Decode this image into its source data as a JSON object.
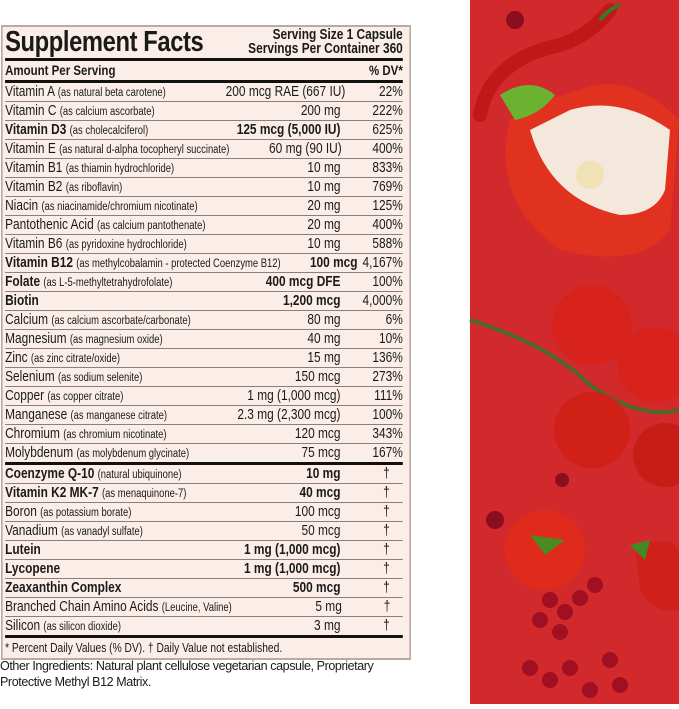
{
  "label": {
    "title": "Supplement Facts",
    "serving_size": "Serving Size 1 Capsule",
    "servings_per_container": "Servings Per Container 360",
    "amount_header": "Amount Per Serving",
    "dv_header": "% DV*",
    "rows": [
      {
        "name": "Vitamin A",
        "source": "(as natural beta carotene)",
        "amount": "200 mcg RAE (667 IU)",
        "dv": "22%"
      },
      {
        "name": "Vitamin C",
        "source": "(as calcium ascorbate)",
        "amount": "200 mg",
        "dv": "222%"
      },
      {
        "name": "Vitamin D3",
        "source": "(as cholecalciferol)",
        "amount": "125 mcg (5,000 IU)",
        "dv": "625%",
        "bold": true
      },
      {
        "name": "Vitamin E",
        "source": "(as natural d-alpha tocopheryl succinate)",
        "amount": "60 mg (90 IU)",
        "dv": "400%"
      },
      {
        "name": "Vitamin B1",
        "source": "(as thiamin hydrochloride)",
        "amount": "10 mg",
        "dv": "833%"
      },
      {
        "name": "Vitamin B2",
        "source": "(as riboflavin)",
        "amount": "10 mg",
        "dv": "769%"
      },
      {
        "name": "Niacin",
        "source": "(as niacinamide/chromium nicotinate)",
        "amount": "20 mg",
        "dv": "125%"
      },
      {
        "name": "Pantothenic Acid",
        "source": "(as calcium pantothenate)",
        "amount": "20 mg",
        "dv": "400%"
      },
      {
        "name": "Vitamin B6",
        "source": "(as pyridoxine hydrochloride)",
        "amount": "10 mg",
        "dv": "588%"
      },
      {
        "name": "Vitamin B12",
        "source": "(as methylcobalamin - protected Coenzyme B12)",
        "amount": "100 mcg",
        "dv": "4,167%",
        "bold": true
      },
      {
        "name": "Folate",
        "source": "(as L-5-methyltetrahydrofolate)",
        "amount": "400 mcg DFE",
        "dv": "100%",
        "bold": true
      },
      {
        "name": "Biotin",
        "source": "",
        "amount": "1,200 mcg",
        "dv": "4,000%",
        "bold": true
      },
      {
        "name": "Calcium",
        "source": "(as calcium ascorbate/carbonate)",
        "amount": "80 mg",
        "dv": "6%"
      },
      {
        "name": "Magnesium",
        "source": "(as magnesium oxide)",
        "amount": "40 mg",
        "dv": "10%"
      },
      {
        "name": "Zinc",
        "source": "(as zinc citrate/oxide)",
        "amount": "15 mg",
        "dv": "136%"
      },
      {
        "name": "Selenium",
        "source": "(as sodium selenite)",
        "amount": "150 mcg",
        "dv": "273%"
      },
      {
        "name": "Copper",
        "source": "(as copper citrate)",
        "amount": "1 mg (1,000 mcg)",
        "dv": "111%"
      },
      {
        "name": "Manganese",
        "source": "(as manganese citrate)",
        "amount": "2.3 mg (2,300 mcg)",
        "dv": "100%"
      },
      {
        "name": "Chromium",
        "source": "(as chromium nicotinate)",
        "amount": "120 mcg",
        "dv": "343%"
      },
      {
        "name": "Molybdenum",
        "source": "(as molybdenum glycinate)",
        "amount": "75 mcg",
        "dv": "167%",
        "thick": true
      },
      {
        "name": "Coenzyme Q-10",
        "source": "(natural ubiquinone)",
        "amount": "10 mg",
        "dv": "†",
        "bold": true
      },
      {
        "name": "Vitamin K2 MK-7",
        "source": "(as menaquinone-7)",
        "amount": "40 mcg",
        "dv": "†",
        "bold": true
      },
      {
        "name": "Boron",
        "source": "(as potassium borate)",
        "amount": "100 mcg",
        "dv": "†"
      },
      {
        "name": "Vanadium",
        "source": "(as vanadyl sulfate)",
        "amount": "50 mcg",
        "dv": "†"
      },
      {
        "name": "Lutein",
        "source": "",
        "amount": "1 mg (1,000 mcg)",
        "dv": "†",
        "bold": true
      },
      {
        "name": "Lycopene",
        "source": "",
        "amount": "1 mg (1,000 mcg)",
        "dv": "†",
        "bold": true
      },
      {
        "name": "Zeaxanthin Complex",
        "source": "",
        "amount": "500 mcg",
        "dv": "†",
        "bold": true
      },
      {
        "name": "Branched Chain Amino Acids",
        "source": "(Leucine, Valine)",
        "amount": "5 mg",
        "dv": "†"
      },
      {
        "name": "Silicon",
        "source": "(as silicon dioxide)",
        "amount": "3 mg",
        "dv": "†",
        "thick": true
      }
    ],
    "footnote": "* Percent Daily Values (% DV). † Daily Value not established."
  },
  "other_ingredients": "Other Ingredients: Natural plant cellulose vegetarian capsule, Proprietary Protective Methyl B12 Matrix.",
  "photo": {
    "subject_icons": [
      "chili-pepper",
      "red-bell-pepper",
      "cherry-tomatoes",
      "pomegranate-seeds",
      "red-currants",
      "strawberry"
    ],
    "background_color": "#d22a2c"
  }
}
